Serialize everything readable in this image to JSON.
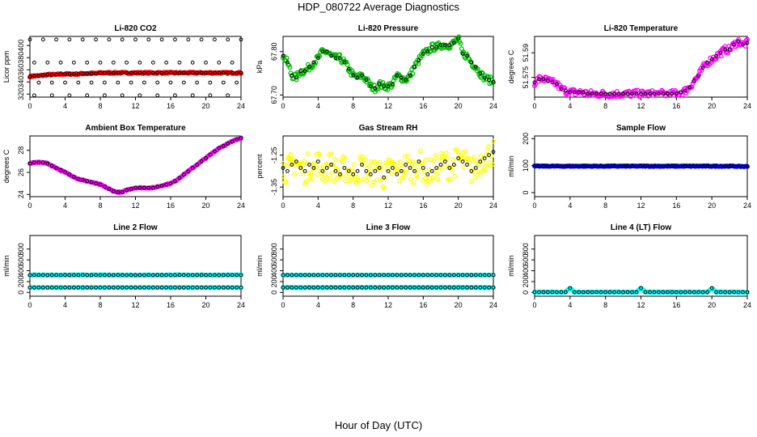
{
  "title": "HDP_080722  Average Diagnostics",
  "xlabel": "Hour of Day (UTC)",
  "chart_data": [
    {
      "type": "scatter",
      "title": "Li-820 CO2",
      "ylabel": "Licor ppm",
      "xlim": [
        0,
        24
      ],
      "xticks": [
        0,
        4,
        8,
        12,
        16,
        20,
        24
      ],
      "ylim": [
        315,
        415
      ],
      "yticks": [
        320,
        340,
        360,
        380,
        400
      ],
      "color": "#ff0000",
      "pattern": "co2",
      "x": [
        0,
        0.5,
        1,
        1.5,
        2,
        2.5,
        3,
        3.5,
        4,
        4.5,
        5,
        5.5,
        6,
        6.5,
        7,
        7.5,
        8,
        8.5,
        9,
        9.5,
        10,
        10.5,
        11,
        11.5,
        12,
        12.5,
        13,
        13.5,
        14,
        14.5,
        15,
        15.5,
        16,
        16.5,
        17,
        17.5,
        18,
        18.5,
        19,
        19.5,
        20,
        20.5,
        21,
        21.5,
        22,
        22.5,
        23,
        23.5,
        24
      ],
      "y": [
        349,
        350,
        350,
        351,
        352,
        352,
        352,
        353,
        353,
        353,
        353,
        353,
        354,
        354,
        354,
        354,
        355,
        355,
        355,
        355,
        355,
        355,
        355,
        355,
        355,
        355,
        355,
        355,
        355,
        355,
        355,
        355,
        355,
        355,
        355,
        355,
        355,
        355,
        355,
        355,
        355,
        355,
        355,
        355,
        355,
        355,
        355,
        355,
        355
      ]
    },
    {
      "type": "scatter",
      "title": "Li-820 Pressure",
      "ylabel": "kPa",
      "xlim": [
        0,
        24
      ],
      "xticks": [
        0,
        4,
        8,
        12,
        16,
        20,
        24
      ],
      "ylim": [
        67.695,
        67.835
      ],
      "yticks": [
        67.7,
        67.8
      ],
      "color": "#00bb00",
      "pattern": "pressure",
      "x": [
        0,
        0.5,
        1,
        1.5,
        2,
        2.5,
        3,
        3.5,
        4,
        4.5,
        5,
        5.5,
        6,
        6.5,
        7,
        7.5,
        8,
        8.5,
        9,
        9.5,
        10,
        10.5,
        11,
        11.5,
        12,
        12.5,
        13,
        13.5,
        14,
        14.5,
        15,
        15.5,
        16,
        16.5,
        17,
        17.5,
        18,
        18.5,
        19,
        19.5,
        20,
        20.5,
        21,
        21.5,
        22,
        22.5,
        23,
        23.5,
        24
      ],
      "y": [
        67.79,
        67.775,
        67.745,
        67.74,
        67.755,
        67.755,
        67.765,
        67.775,
        67.785,
        67.8,
        67.8,
        67.79,
        67.785,
        67.785,
        67.775,
        67.76,
        67.745,
        67.74,
        67.745,
        67.735,
        67.72,
        67.715,
        67.725,
        67.72,
        67.72,
        67.725,
        67.745,
        67.74,
        67.735,
        67.745,
        67.765,
        67.78,
        67.795,
        67.8,
        67.81,
        67.81,
        67.815,
        67.815,
        67.815,
        67.82,
        67.83,
        67.795,
        67.79,
        67.775,
        67.765,
        67.75,
        67.74,
        67.735,
        67.73
      ]
    },
    {
      "type": "scatter",
      "title": "Li-820 Temperature",
      "ylabel": "degrees C",
      "xlim": [
        0,
        24
      ],
      "xticks": [
        0,
        4,
        8,
        12,
        16,
        20,
        24
      ],
      "ylim": [
        51.563,
        51.6
      ],
      "yticks": [
        51.575,
        51.59
      ],
      "color": "#ff00ff",
      "pattern": "temp",
      "x": [
        0,
        0.5,
        1,
        1.5,
        2,
        2.5,
        3,
        3.5,
        4,
        4.5,
        5,
        5.5,
        6,
        6.5,
        7,
        7.5,
        8,
        8.5,
        9,
        9.5,
        10,
        10.5,
        11,
        11.5,
        12,
        12.5,
        13,
        13.5,
        14,
        14.5,
        15,
        15.5,
        16,
        16.5,
        17,
        17.5,
        18,
        18.5,
        19,
        19.5,
        20,
        20.5,
        21,
        21.5,
        22,
        22.5,
        23,
        23.5,
        24
      ],
      "y": [
        51.572,
        51.574,
        51.574,
        51.573,
        51.572,
        51.571,
        51.568,
        51.567,
        51.566,
        51.566,
        51.566,
        51.566,
        51.565,
        51.565,
        51.565,
        51.565,
        51.565,
        51.565,
        51.565,
        51.565,
        51.565,
        51.565,
        51.565,
        51.565,
        51.565,
        51.565,
        51.565,
        51.565,
        51.565,
        51.565,
        51.565,
        51.565,
        51.565,
        51.566,
        51.567,
        51.569,
        51.573,
        51.576,
        51.581,
        51.584,
        51.586,
        51.588,
        51.59,
        51.592,
        51.592,
        51.595,
        51.597,
        51.595,
        51.596
      ]
    },
    {
      "type": "scatter",
      "title": "Ambient Box Temperature",
      "ylabel": "degrees C",
      "xlim": [
        0,
        24
      ],
      "xticks": [
        0,
        4,
        8,
        12,
        16,
        20,
        24
      ],
      "ylim": [
        23.8,
        29.3
      ],
      "yticks": [
        24,
        26,
        28
      ],
      "color": "#ff00ff",
      "pattern": "ambient",
      "x": [
        0,
        0.5,
        1,
        1.5,
        2,
        2.5,
        3,
        3.5,
        4,
        4.5,
        5,
        5.5,
        6,
        6.5,
        7,
        7.5,
        8,
        8.5,
        9,
        9.5,
        10,
        10.5,
        11,
        11.5,
        12,
        12.5,
        13,
        13.5,
        14,
        14.5,
        15,
        15.5,
        16,
        16.5,
        17,
        17.5,
        18,
        18.5,
        19,
        19.5,
        20,
        20.5,
        21,
        21.5,
        22,
        22.5,
        23,
        23.5,
        24
      ],
      "y": [
        26.8,
        26.9,
        26.9,
        26.9,
        26.8,
        26.6,
        26.4,
        26.2,
        26.0,
        25.8,
        25.6,
        25.4,
        25.3,
        25.2,
        25.1,
        25.0,
        24.9,
        24.7,
        24.5,
        24.3,
        24.2,
        24.2,
        24.4,
        24.5,
        24.6,
        24.6,
        24.6,
        24.6,
        24.6,
        24.7,
        24.8,
        24.9,
        25.0,
        25.2,
        25.5,
        25.8,
        26.1,
        26.4,
        26.7,
        27.0,
        27.3,
        27.6,
        27.9,
        28.2,
        28.4,
        28.6,
        28.8,
        29.0,
        29.1
      ]
    },
    {
      "type": "scatter",
      "title": "Gas Stream RH",
      "ylabel": "percent",
      "xlim": [
        0,
        24
      ],
      "xticks": [
        0,
        4,
        8,
        12,
        16,
        20,
        24
      ],
      "ylim": [
        -1.38,
        -1.19
      ],
      "yticks": [
        -1.35,
        -1.25
      ],
      "color": "#ffff00",
      "pattern": "rh",
      "x": [
        0,
        0.5,
        1,
        1.5,
        2,
        2.5,
        3,
        3.5,
        4,
        4.5,
        5,
        5.5,
        6,
        6.5,
        7,
        7.5,
        8,
        8.5,
        9,
        9.5,
        10,
        10.5,
        11,
        11.5,
        12,
        12.5,
        13,
        13.5,
        14,
        14.5,
        15,
        15.5,
        16,
        16.5,
        17,
        17.5,
        18,
        18.5,
        19,
        19.5,
        20,
        20.5,
        21,
        21.5,
        22,
        22.5,
        23,
        23.5,
        24
      ],
      "y": [
        -1.29,
        -1.3,
        -1.28,
        -1.27,
        -1.29,
        -1.3,
        -1.28,
        -1.29,
        -1.27,
        -1.3,
        -1.29,
        -1.28,
        -1.3,
        -1.31,
        -1.29,
        -1.3,
        -1.31,
        -1.3,
        -1.28,
        -1.3,
        -1.31,
        -1.3,
        -1.29,
        -1.32,
        -1.3,
        -1.29,
        -1.31,
        -1.3,
        -1.28,
        -1.29,
        -1.3,
        -1.27,
        -1.29,
        -1.31,
        -1.3,
        -1.29,
        -1.28,
        -1.27,
        -1.29,
        -1.28,
        -1.26,
        -1.27,
        -1.28,
        -1.3,
        -1.29,
        -1.27,
        -1.26,
        -1.25,
        -1.24
      ]
    },
    {
      "type": "scatter",
      "title": "Sample Flow",
      "ylabel": "ml/min",
      "xlim": [
        0,
        24
      ],
      "xticks": [
        0,
        4,
        8,
        12,
        16,
        20,
        24
      ],
      "ylim": [
        -15,
        210
      ],
      "yticks": [
        0,
        100,
        200
      ],
      "color": "#0000ff",
      "pattern": "flat",
      "x": [
        0,
        0.5,
        1,
        1.5,
        2,
        2.5,
        3,
        3.5,
        4,
        4.5,
        5,
        5.5,
        6,
        6.5,
        7,
        7.5,
        8,
        8.5,
        9,
        9.5,
        10,
        10.5,
        11,
        11.5,
        12,
        12.5,
        13,
        13.5,
        14,
        14.5,
        15,
        15.5,
        16,
        16.5,
        17,
        17.5,
        18,
        18.5,
        19,
        19.5,
        20,
        20.5,
        21,
        21.5,
        22,
        22.5,
        23,
        23.5,
        24
      ],
      "y": [
        98,
        98,
        98,
        98,
        98,
        98,
        98,
        98,
        98,
        98,
        98,
        98,
        98,
        98,
        98,
        98,
        98,
        98,
        98,
        98,
        98,
        98,
        98,
        98,
        98,
        98,
        98,
        98,
        98,
        98,
        98,
        98,
        98,
        98,
        98,
        98,
        98,
        98,
        98,
        98,
        98,
        98,
        98,
        98,
        98,
        98,
        97,
        97,
        97
      ]
    },
    {
      "type": "scatter",
      "title": "Line 2 Flow",
      "ylabel": "ml/min",
      "xlim": [
        0,
        24
      ],
      "xticks": [
        0,
        4,
        8,
        12,
        16,
        20,
        24
      ],
      "ylim": [
        -70,
        1050
      ],
      "yticks": [
        0,
        200,
        400,
        600,
        800
      ],
      "color": "#00ffff",
      "pattern": "flat",
      "x": [
        0,
        0.5,
        1,
        1.5,
        2,
        2.5,
        3,
        3.5,
        4,
        4.5,
        5,
        5.5,
        6,
        6.5,
        7,
        7.5,
        8,
        8.5,
        9,
        9.5,
        10,
        10.5,
        11,
        11.5,
        12,
        12.5,
        13,
        13.5,
        14,
        14.5,
        15,
        15.5,
        16,
        16.5,
        17,
        17.5,
        18,
        18.5,
        19,
        19.5,
        20,
        20.5,
        21,
        21.5,
        22,
        22.5,
        23,
        23.5,
        24
      ],
      "y": [
        320,
        320,
        320,
        320,
        320,
        320,
        320,
        320,
        320,
        320,
        320,
        320,
        320,
        320,
        320,
        320,
        320,
        320,
        320,
        320,
        320,
        320,
        320,
        320,
        320,
        320,
        320,
        320,
        320,
        320,
        320,
        320,
        320,
        320,
        320,
        320,
        320,
        320,
        320,
        320,
        320,
        320,
        320,
        320,
        320,
        320,
        320,
        320,
        320
      ],
      "y_secondary": 90
    },
    {
      "type": "scatter",
      "title": "Line 3 Flow",
      "ylabel": "ml/min",
      "xlim": [
        0,
        24
      ],
      "xticks": [
        0,
        4,
        8,
        12,
        16,
        20,
        24
      ],
      "ylim": [
        -70,
        1050
      ],
      "yticks": [
        0,
        200,
        400,
        600,
        800
      ],
      "color": "#00ffff",
      "pattern": "flat",
      "x": [
        0,
        0.5,
        1,
        1.5,
        2,
        2.5,
        3,
        3.5,
        4,
        4.5,
        5,
        5.5,
        6,
        6.5,
        7,
        7.5,
        8,
        8.5,
        9,
        9.5,
        10,
        10.5,
        11,
        11.5,
        12,
        12.5,
        13,
        13.5,
        14,
        14.5,
        15,
        15.5,
        16,
        16.5,
        17,
        17.5,
        18,
        18.5,
        19,
        19.5,
        20,
        20.5,
        21,
        21.5,
        22,
        22.5,
        23,
        23.5,
        24
      ],
      "y": [
        90,
        90,
        90,
        90,
        90,
        90,
        90,
        90,
        90,
        90,
        90,
        90,
        90,
        90,
        90,
        90,
        90,
        90,
        90,
        90,
        90,
        90,
        90,
        90,
        90,
        90,
        90,
        90,
        90,
        90,
        90,
        90,
        90,
        90,
        90,
        90,
        90,
        90,
        90,
        90,
        90,
        90,
        90,
        90,
        90,
        90,
        90,
        90,
        90
      ],
      "y_secondary": 320
    },
    {
      "type": "scatter",
      "title": "Line 4 (LT) Flow",
      "ylabel": "ml/min",
      "xlim": [
        0,
        24
      ],
      "xticks": [
        0,
        4,
        8,
        12,
        16,
        20,
        24
      ],
      "ylim": [
        -70,
        1050
      ],
      "yticks": [
        0,
        200,
        400,
        600,
        800
      ],
      "color": "#00ffff",
      "pattern": "flat",
      "x": [
        0,
        0.5,
        1,
        1.5,
        2,
        2.5,
        3,
        3.5,
        4,
        4.5,
        5,
        5.5,
        6,
        6.5,
        7,
        7.5,
        8,
        8.5,
        9,
        9.5,
        10,
        10.5,
        11,
        11.5,
        12,
        12.5,
        13,
        13.5,
        14,
        14.5,
        15,
        15.5,
        16,
        16.5,
        17,
        17.5,
        18,
        18.5,
        19,
        19.5,
        20,
        20.5,
        21,
        21.5,
        22,
        22.5,
        23,
        23.5,
        24
      ],
      "y": [
        5,
        5,
        5,
        5,
        5,
        5,
        5,
        5,
        80,
        5,
        5,
        5,
        5,
        5,
        5,
        5,
        5,
        5,
        5,
        5,
        5,
        5,
        5,
        5,
        80,
        5,
        5,
        5,
        5,
        5,
        5,
        5,
        5,
        5,
        5,
        5,
        5,
        5,
        5,
        5,
        80,
        5,
        5,
        5,
        5,
        5,
        5,
        5,
        5
      ]
    }
  ]
}
